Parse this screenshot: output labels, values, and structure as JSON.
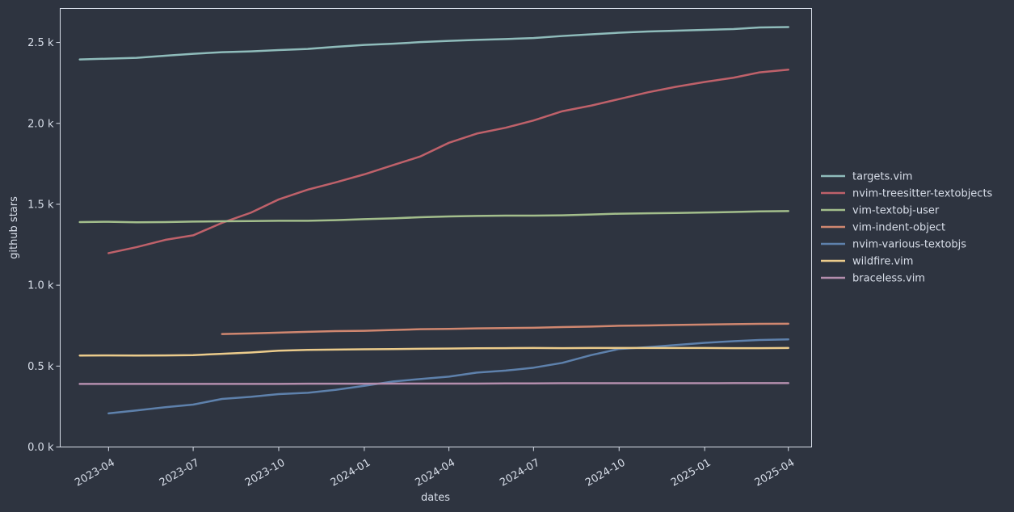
{
  "chart_data": {
    "type": "line",
    "title": "",
    "xlabel": "dates",
    "ylabel": "github stars",
    "x": [
      "2023-03-01",
      "2023-04-01",
      "2023-05-01",
      "2023-06-01",
      "2023-07-01",
      "2023-08-01",
      "2023-09-01",
      "2023-10-01",
      "2023-11-01",
      "2023-12-01",
      "2024-01-01",
      "2024-02-01",
      "2024-03-01",
      "2024-04-01",
      "2024-05-01",
      "2024-06-01",
      "2024-07-01",
      "2024-08-01",
      "2024-09-01",
      "2024-10-01",
      "2024-11-01",
      "2024-12-01",
      "2025-01-01",
      "2025-02-01",
      "2025-03-01",
      "2025-04-01"
    ],
    "xlim": [
      "2023-02-08",
      "2025-04-26"
    ],
    "ylim": [
      0,
      2710
    ],
    "x_ticks": [
      "2023-04",
      "2023-07",
      "2023-10",
      "2024-01",
      "2024-04",
      "2024-07",
      "2024-10",
      "2025-01",
      "2025-04"
    ],
    "y_ticks": [
      0,
      500,
      1000,
      1500,
      2000,
      2500
    ],
    "y_tick_labels": [
      "0.0 k",
      "0.5 k",
      "1.0 k",
      "1.5 k",
      "2.0 k",
      "2.5 k"
    ],
    "grid": false,
    "legend_position": "right",
    "series": [
      {
        "name": "targets.vim",
        "color": "#8fbcbb",
        "values": [
          2395,
          2400,
          2405,
          2418,
          2430,
          2440,
          2445,
          2453,
          2460,
          2473,
          2485,
          2492,
          2502,
          2510,
          2516,
          2521,
          2527,
          2540,
          2550,
          2560,
          2568,
          2573,
          2578,
          2583,
          2593,
          2595
        ]
      },
      {
        "name": "nvim-treesitter-textobjects",
        "color": "#bf616a",
        "values": [
          null,
          1198,
          1235,
          1280,
          1308,
          1385,
          1448,
          1530,
          1590,
          1635,
          1685,
          1742,
          1795,
          1880,
          1937,
          1973,
          2018,
          2075,
          2110,
          2150,
          2192,
          2226,
          2256,
          2282,
          2315,
          2332
        ]
      },
      {
        "name": "vim-textobj-user",
        "color": "#a3be8c",
        "values": [
          1390,
          1392,
          1389,
          1390,
          1393,
          1395,
          1396,
          1398,
          1398,
          1402,
          1408,
          1413,
          1420,
          1425,
          1428,
          1430,
          1430,
          1432,
          1437,
          1442,
          1444,
          1446,
          1449,
          1452,
          1456,
          1458
        ]
      },
      {
        "name": "vim-indent-object",
        "color": "#d08770",
        "values": [
          null,
          null,
          null,
          null,
          null,
          698,
          702,
          707,
          712,
          716,
          718,
          723,
          728,
          730,
          733,
          735,
          737,
          741,
          744,
          749,
          751,
          754,
          757,
          759,
          761,
          762
        ]
      },
      {
        "name": "nvim-various-textobjs",
        "color": "#5e81ac",
        "values": [
          null,
          208,
          226,
          246,
          262,
          297,
          310,
          327,
          335,
          353,
          378,
          405,
          420,
          435,
          460,
          472,
          490,
          520,
          568,
          606,
          617,
          630,
          644,
          654,
          661,
          665
        ]
      },
      {
        "name": "wildfire.vim",
        "color": "#ebcb8b",
        "values": [
          565,
          566,
          565,
          566,
          568,
          576,
          584,
          595,
          600,
          602,
          604,
          605,
          607,
          608,
          610,
          611,
          612,
          611,
          612,
          612,
          612,
          612,
          612,
          611,
          611,
          612
        ]
      },
      {
        "name": "braceless.vim",
        "color": "#b48ead",
        "values": [
          390,
          390,
          390,
          390,
          390,
          390,
          390,
          390,
          391,
          391,
          391,
          392,
          392,
          392,
          392,
          393,
          393,
          394,
          394,
          394,
          394,
          394,
          394,
          395,
          395,
          395
        ]
      }
    ]
  }
}
